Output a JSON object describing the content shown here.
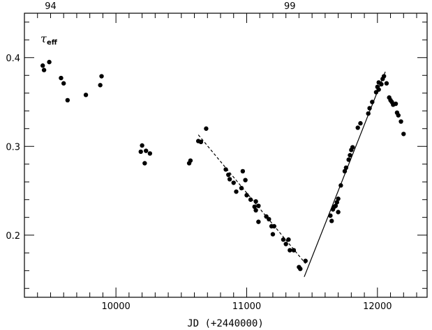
{
  "chart_data": {
    "type": "scatter",
    "title": "",
    "xlabel": "JD (+2440000)",
    "ylabel": "",
    "annotation": {
      "main": "τ",
      "sub": "eff"
    },
    "xlim": [
      9300,
      12380
    ],
    "ylim": [
      0.13,
      0.45
    ],
    "x_ticks": [
      10000,
      11000,
      12000
    ],
    "x_tick_labels": [
      "10000",
      "11000",
      "12000"
    ],
    "x_minor_step": 100,
    "y_ticks": [
      0.2,
      0.3,
      0.4
    ],
    "y_tick_labels": [
      "0.2",
      "0.3",
      "0.4"
    ],
    "y_minor_step": 0.02,
    "top_axis_labels": [
      {
        "x": 9500,
        "label": "94"
      },
      {
        "x": 11330,
        "label": "99"
      }
    ],
    "grid": false,
    "points": [
      [
        9440,
        0.391
      ],
      [
        9450,
        0.386
      ],
      [
        9490,
        0.395
      ],
      [
        9580,
        0.377
      ],
      [
        9600,
        0.371
      ],
      [
        9630,
        0.352
      ],
      [
        9770,
        0.358
      ],
      [
        9880,
        0.369
      ],
      [
        9890,
        0.379
      ],
      [
        10190,
        0.294
      ],
      [
        10200,
        0.301
      ],
      [
        10220,
        0.281
      ],
      [
        10230,
        0.295
      ],
      [
        10260,
        0.292
      ],
      [
        10560,
        0.281
      ],
      [
        10570,
        0.284
      ],
      [
        10630,
        0.306
      ],
      [
        10650,
        0.305
      ],
      [
        10690,
        0.32
      ],
      [
        10840,
        0.274
      ],
      [
        10860,
        0.268
      ],
      [
        10870,
        0.263
      ],
      [
        10900,
        0.259
      ],
      [
        10920,
        0.249
      ],
      [
        10960,
        0.253
      ],
      [
        10970,
        0.272
      ],
      [
        10990,
        0.262
      ],
      [
        11000,
        0.245
      ],
      [
        11030,
        0.24
      ],
      [
        11060,
        0.232
      ],
      [
        11070,
        0.228
      ],
      [
        11070,
        0.238
      ],
      [
        11090,
        0.233
      ],
      [
        11090,
        0.215
      ],
      [
        11150,
        0.221
      ],
      [
        11170,
        0.218
      ],
      [
        11190,
        0.21
      ],
      [
        11200,
        0.201
      ],
      [
        11210,
        0.21
      ],
      [
        11280,
        0.195
      ],
      [
        11300,
        0.19
      ],
      [
        11320,
        0.195
      ],
      [
        11330,
        0.183
      ],
      [
        11360,
        0.183
      ],
      [
        11400,
        0.164
      ],
      [
        11410,
        0.162
      ],
      [
        11450,
        0.171
      ],
      [
        11640,
        0.222
      ],
      [
        11650,
        0.216
      ],
      [
        11660,
        0.229
      ],
      [
        11670,
        0.232
      ],
      [
        11680,
        0.233
      ],
      [
        11690,
        0.237
      ],
      [
        11700,
        0.241
      ],
      [
        11700,
        0.226
      ],
      [
        11720,
        0.256
      ],
      [
        11750,
        0.272
      ],
      [
        11760,
        0.276
      ],
      [
        11780,
        0.285
      ],
      [
        11790,
        0.29
      ],
      [
        11800,
        0.296
      ],
      [
        11810,
        0.299
      ],
      [
        11850,
        0.321
      ],
      [
        11870,
        0.326
      ],
      [
        11930,
        0.337
      ],
      [
        11940,
        0.343
      ],
      [
        11960,
        0.35
      ],
      [
        11990,
        0.361
      ],
      [
        12000,
        0.367
      ],
      [
        12010,
        0.364
      ],
      [
        12010,
        0.372
      ],
      [
        12030,
        0.37
      ],
      [
        12040,
        0.376
      ],
      [
        12050,
        0.379
      ],
      [
        12070,
        0.371
      ],
      [
        12090,
        0.355
      ],
      [
        12100,
        0.352
      ],
      [
        12110,
        0.35
      ],
      [
        12120,
        0.347
      ],
      [
        12140,
        0.348
      ],
      [
        12150,
        0.338
      ],
      [
        12160,
        0.335
      ],
      [
        12180,
        0.328
      ],
      [
        12200,
        0.314
      ]
    ],
    "fit_lines": [
      {
        "style": "dashed",
        "x": [
          10630,
          11450
        ],
        "y": [
          0.313,
          0.168
        ]
      },
      {
        "style": "solid",
        "x": [
          11440,
          12060
        ],
        "y": [
          0.153,
          0.384
        ]
      }
    ]
  }
}
